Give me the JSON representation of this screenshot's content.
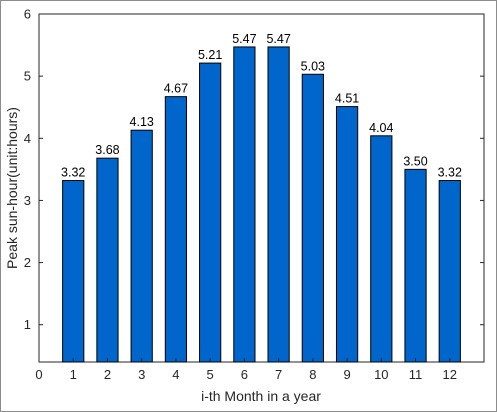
{
  "chart_data": {
    "type": "bar",
    "categories": [
      "1",
      "2",
      "3",
      "4",
      "5",
      "6",
      "7",
      "8",
      "9",
      "10",
      "11",
      "12"
    ],
    "values": [
      3.32,
      3.68,
      4.13,
      4.67,
      5.21,
      5.47,
      5.47,
      5.03,
      4.51,
      4.04,
      3.5,
      3.32
    ],
    "data_labels": [
      "3.32",
      "3.68",
      "4.13",
      "4.67",
      "5.21",
      "5.47",
      "5.47",
      "5.03",
      "4.51",
      "4.04",
      "3.50",
      "3.32"
    ],
    "xlabel": "i-th Month in a year",
    "ylabel": "Peak sun-hour(unit:hours)",
    "xlim": [
      0,
      13
    ],
    "ylim": [
      0.4,
      6
    ],
    "x_ticks": [
      "0",
      "1",
      "2",
      "3",
      "4",
      "5",
      "6",
      "7",
      "8",
      "9",
      "10",
      "11",
      "12"
    ],
    "y_ticks": [
      "1",
      "2",
      "3",
      "4",
      "5",
      "6"
    ],
    "grid": false,
    "bar_color": "#0066cc",
    "bar_edge_color": "#000000"
  }
}
